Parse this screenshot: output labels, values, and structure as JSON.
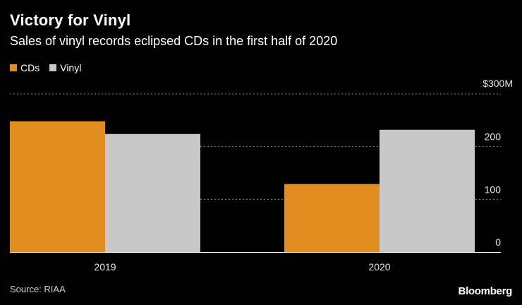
{
  "header": {
    "title": "Victory for Vinyl",
    "subtitle": "Sales of vinyl records eclipsed CDs in the first half of 2020"
  },
  "legend": [
    {
      "label": "CDs",
      "color": "#E08C1E"
    },
    {
      "label": "Vinyl",
      "color": "#C8C8C8"
    }
  ],
  "footer": {
    "source": "Source: RIAA",
    "brand": "Bloomberg"
  },
  "chart_data": {
    "type": "bar",
    "title": "Victory for Vinyl",
    "subtitle": "Sales of vinyl records eclipsed CDs in the first half of 2020",
    "categories": [
      "2019",
      "2020"
    ],
    "series": [
      {
        "name": "CDs",
        "color": "#E08C1E",
        "values": [
          248,
          129
        ]
      },
      {
        "name": "Vinyl",
        "color": "#C8C8C8",
        "values": [
          224,
          232
        ]
      }
    ],
    "xlabel": "",
    "ylabel": "",
    "ylim": [
      0,
      300
    ],
    "y_ticks": [
      {
        "value": 0,
        "label": "0"
      },
      {
        "value": 100,
        "label": "100"
      },
      {
        "value": 200,
        "label": "200"
      },
      {
        "value": 300,
        "label": "$300M"
      }
    ],
    "grid": true,
    "legend_position": "top-left",
    "y_axis_side": "right"
  }
}
